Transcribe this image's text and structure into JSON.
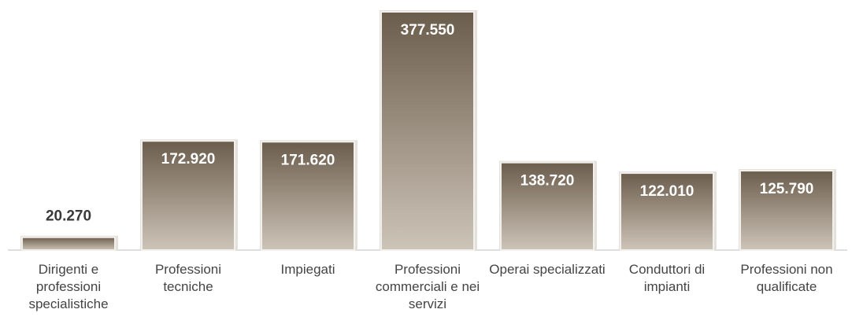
{
  "chart_data": {
    "type": "bar",
    "categories": [
      "Dirigenti e professioni specialistiche",
      "Professioni tecniche",
      "Impiegati",
      "Professioni commerciali e nei servizi",
      "Operai specializzati",
      "Conduttori di impianti",
      "Professioni non qualificate"
    ],
    "values": [
      20270,
      172920,
      171620,
      377550,
      138720,
      122010,
      125790
    ],
    "value_labels": [
      "20.270",
      "172.920",
      "171.620",
      "377.550",
      "138.720",
      "122.010",
      "125.790"
    ],
    "color": "#7a6c5c"
  }
}
